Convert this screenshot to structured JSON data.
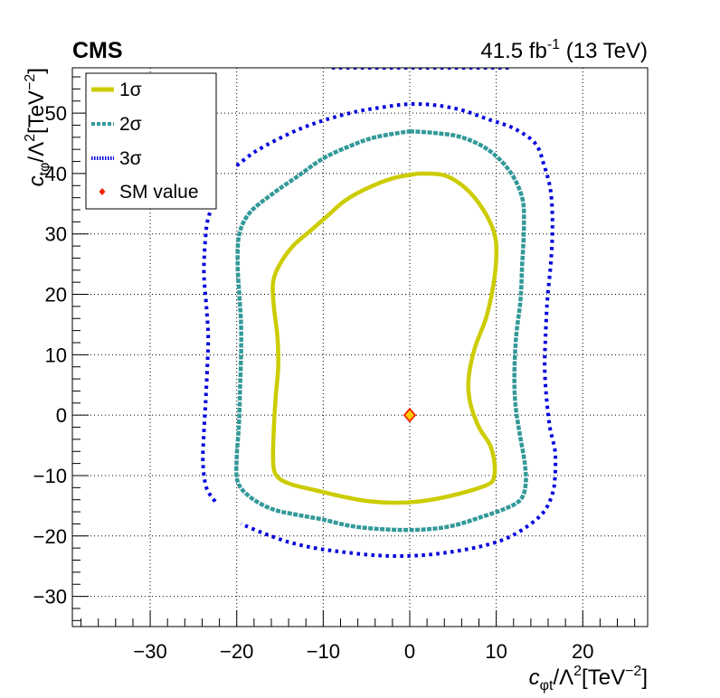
{
  "header": {
    "experiment": "CMS",
    "lumi_value": "41.5 fb",
    "lumi_exp": "-1",
    "lumi_energy": " (13 TeV)"
  },
  "chart_data": {
    "type": "contour",
    "xlim": [
      -39,
      27.5
    ],
    "ylim": [
      -35,
      57.5
    ],
    "xticks": [
      -30,
      -20,
      -10,
      0,
      10,
      20
    ],
    "xtick_labels": [
      "−30",
      "−20",
      "−10",
      "0",
      "10",
      "20"
    ],
    "yticks": [
      -30,
      -20,
      -10,
      0,
      10,
      20,
      30,
      40,
      50
    ],
    "ytick_labels": [
      "−30",
      "−20",
      "−10",
      "0",
      "10",
      "20",
      "30",
      "40",
      "50"
    ],
    "xlabel": {
      "c": "c",
      "sub": "φt",
      "mid": "/Λ",
      "sup2": "2",
      "unit": "[TeV",
      "sup_unit": "−2",
      "close": "]"
    },
    "ylabel": {
      "c": "c",
      "sub": "tφ",
      "mid": "/Λ",
      "sup2": "2",
      "unit": "[TeV",
      "sup_unit": "−2",
      "close": "]"
    },
    "grid": true,
    "legend_position": "top-left",
    "series": [
      {
        "name": "1σ",
        "color": "#cccc00",
        "style": "solid",
        "points": [
          [
            1,
            40
          ],
          [
            4,
            39.7
          ],
          [
            6.5,
            37.5
          ],
          [
            8.5,
            34
          ],
          [
            9.8,
            30
          ],
          [
            10,
            26
          ],
          [
            9.6,
            21
          ],
          [
            8.8,
            16
          ],
          [
            7.5,
            11
          ],
          [
            6.8,
            6
          ],
          [
            7,
            2
          ],
          [
            8,
            -2
          ],
          [
            9.3,
            -5
          ],
          [
            9.8,
            -8
          ],
          [
            9.7,
            -10.5
          ],
          [
            9,
            -11.5
          ],
          [
            7,
            -12.5
          ],
          [
            4,
            -13.6
          ],
          [
            1,
            -14.3
          ],
          [
            -2,
            -14.5
          ],
          [
            -5,
            -14.2
          ],
          [
            -8,
            -13.4
          ],
          [
            -11,
            -12.4
          ],
          [
            -14,
            -11.3
          ],
          [
            -15.5,
            -9.8
          ],
          [
            -15.8,
            -7
          ],
          [
            -15.7,
            -2
          ],
          [
            -15.5,
            3
          ],
          [
            -15.2,
            8
          ],
          [
            -15.3,
            13
          ],
          [
            -15.7,
            18
          ],
          [
            -15.8,
            22
          ],
          [
            -15,
            25
          ],
          [
            -13.5,
            28
          ],
          [
            -11.5,
            30.5
          ],
          [
            -9.5,
            33
          ],
          [
            -7.5,
            35.5
          ],
          [
            -5,
            37.5
          ],
          [
            -2,
            39.2
          ],
          [
            1,
            40
          ]
        ]
      },
      {
        "name": "2σ",
        "color": "#339999",
        "style": "dashed",
        "points": [
          [
            0,
            47
          ],
          [
            3,
            46.7
          ],
          [
            6,
            46
          ],
          [
            9,
            44
          ],
          [
            11.5,
            40.5
          ],
          [
            13,
            36
          ],
          [
            13.2,
            31
          ],
          [
            13,
            25
          ],
          [
            12.8,
            19
          ],
          [
            12.3,
            13
          ],
          [
            12.1,
            7
          ],
          [
            12.2,
            2
          ],
          [
            12.7,
            -3
          ],
          [
            13.3,
            -8
          ],
          [
            13.4,
            -11.5
          ],
          [
            12.8,
            -14
          ],
          [
            11,
            -15.5
          ],
          [
            8,
            -17
          ],
          [
            5,
            -18.3
          ],
          [
            2,
            -18.9
          ],
          [
            -1,
            -19
          ],
          [
            -4,
            -18.8
          ],
          [
            -7,
            -18.3
          ],
          [
            -10,
            -17.3
          ],
          [
            -13,
            -16.5
          ],
          [
            -16,
            -15.5
          ],
          [
            -18.5,
            -13.5
          ],
          [
            -19.9,
            -11
          ],
          [
            -20,
            -7
          ],
          [
            -19.8,
            -3
          ],
          [
            -19.7,
            0
          ],
          [
            -19.6,
            5
          ],
          [
            -19.5,
            10
          ],
          [
            -19.5,
            15
          ],
          [
            -19.7,
            20
          ],
          [
            -19.9,
            25
          ],
          [
            -19.7,
            30
          ],
          [
            -18.5,
            33.5
          ],
          [
            -16,
            36.5
          ],
          [
            -13,
            39.5
          ],
          [
            -10,
            42.5
          ],
          [
            -7,
            44.5
          ],
          [
            -4,
            46
          ],
          [
            0,
            47
          ]
        ]
      },
      {
        "name": "3σ",
        "color": "#0000dd",
        "style": "dotted",
        "points_segments": [
          [
            [
              -9,
              57.5
            ],
            [
              -4,
              57.5
            ],
            [
              1,
              57.5
            ],
            [
              6,
              57.5
            ],
            [
              11.5,
              57.5
            ]
          ],
          [
            [
              -20,
              41.3
            ],
            [
              -18,
              43.5
            ],
            [
              -15.5,
              45.5
            ],
            [
              -12.5,
              47.5
            ],
            [
              -9.5,
              49
            ],
            [
              -6,
              50.3
            ],
            [
              -3,
              51
            ],
            [
              0,
              51.5
            ],
            [
              3,
              51.3
            ],
            [
              6,
              50.5
            ],
            [
              9,
              49
            ],
            [
              12,
              47.5
            ],
            [
              14.5,
              45
            ],
            [
              15.5,
              41.5
            ],
            [
              16.3,
              37
            ],
            [
              16.5,
              31
            ],
            [
              16.3,
              25
            ],
            [
              15.9,
              19
            ],
            [
              15.7,
              13
            ],
            [
              15.6,
              8
            ],
            [
              15.8,
              3
            ],
            [
              16.2,
              -2
            ],
            [
              16.8,
              -6
            ],
            [
              16.8,
              -10
            ],
            [
              16.5,
              -13
            ],
            [
              15.5,
              -16
            ],
            [
              13.5,
              -18.5
            ],
            [
              11,
              -20.5
            ],
            [
              8,
              -21.8
            ],
            [
              4,
              -22.8
            ],
            [
              0,
              -23.3
            ],
            [
              -4,
              -23.2
            ],
            [
              -8,
              -22.6
            ],
            [
              -11,
              -22
            ],
            [
              -14,
              -21
            ],
            [
              -17,
              -19.5
            ],
            [
              -19.5,
              -18
            ]
          ],
          [
            [
              -22.5,
              -14.3
            ],
            [
              -23.5,
              -12
            ],
            [
              -23.9,
              -8
            ],
            [
              -23.8,
              -3
            ],
            [
              -23.6,
              2
            ],
            [
              -23.4,
              8
            ],
            [
              -23.3,
              13
            ],
            [
              -23.5,
              18
            ],
            [
              -23.8,
              24
            ],
            [
              -23.5,
              31
            ],
            [
              -23,
              34
            ]
          ]
        ]
      },
      {
        "name": "SM value",
        "color": "#ee2200",
        "marker": "diamond",
        "points": [
          [
            0,
            0
          ]
        ]
      }
    ]
  }
}
